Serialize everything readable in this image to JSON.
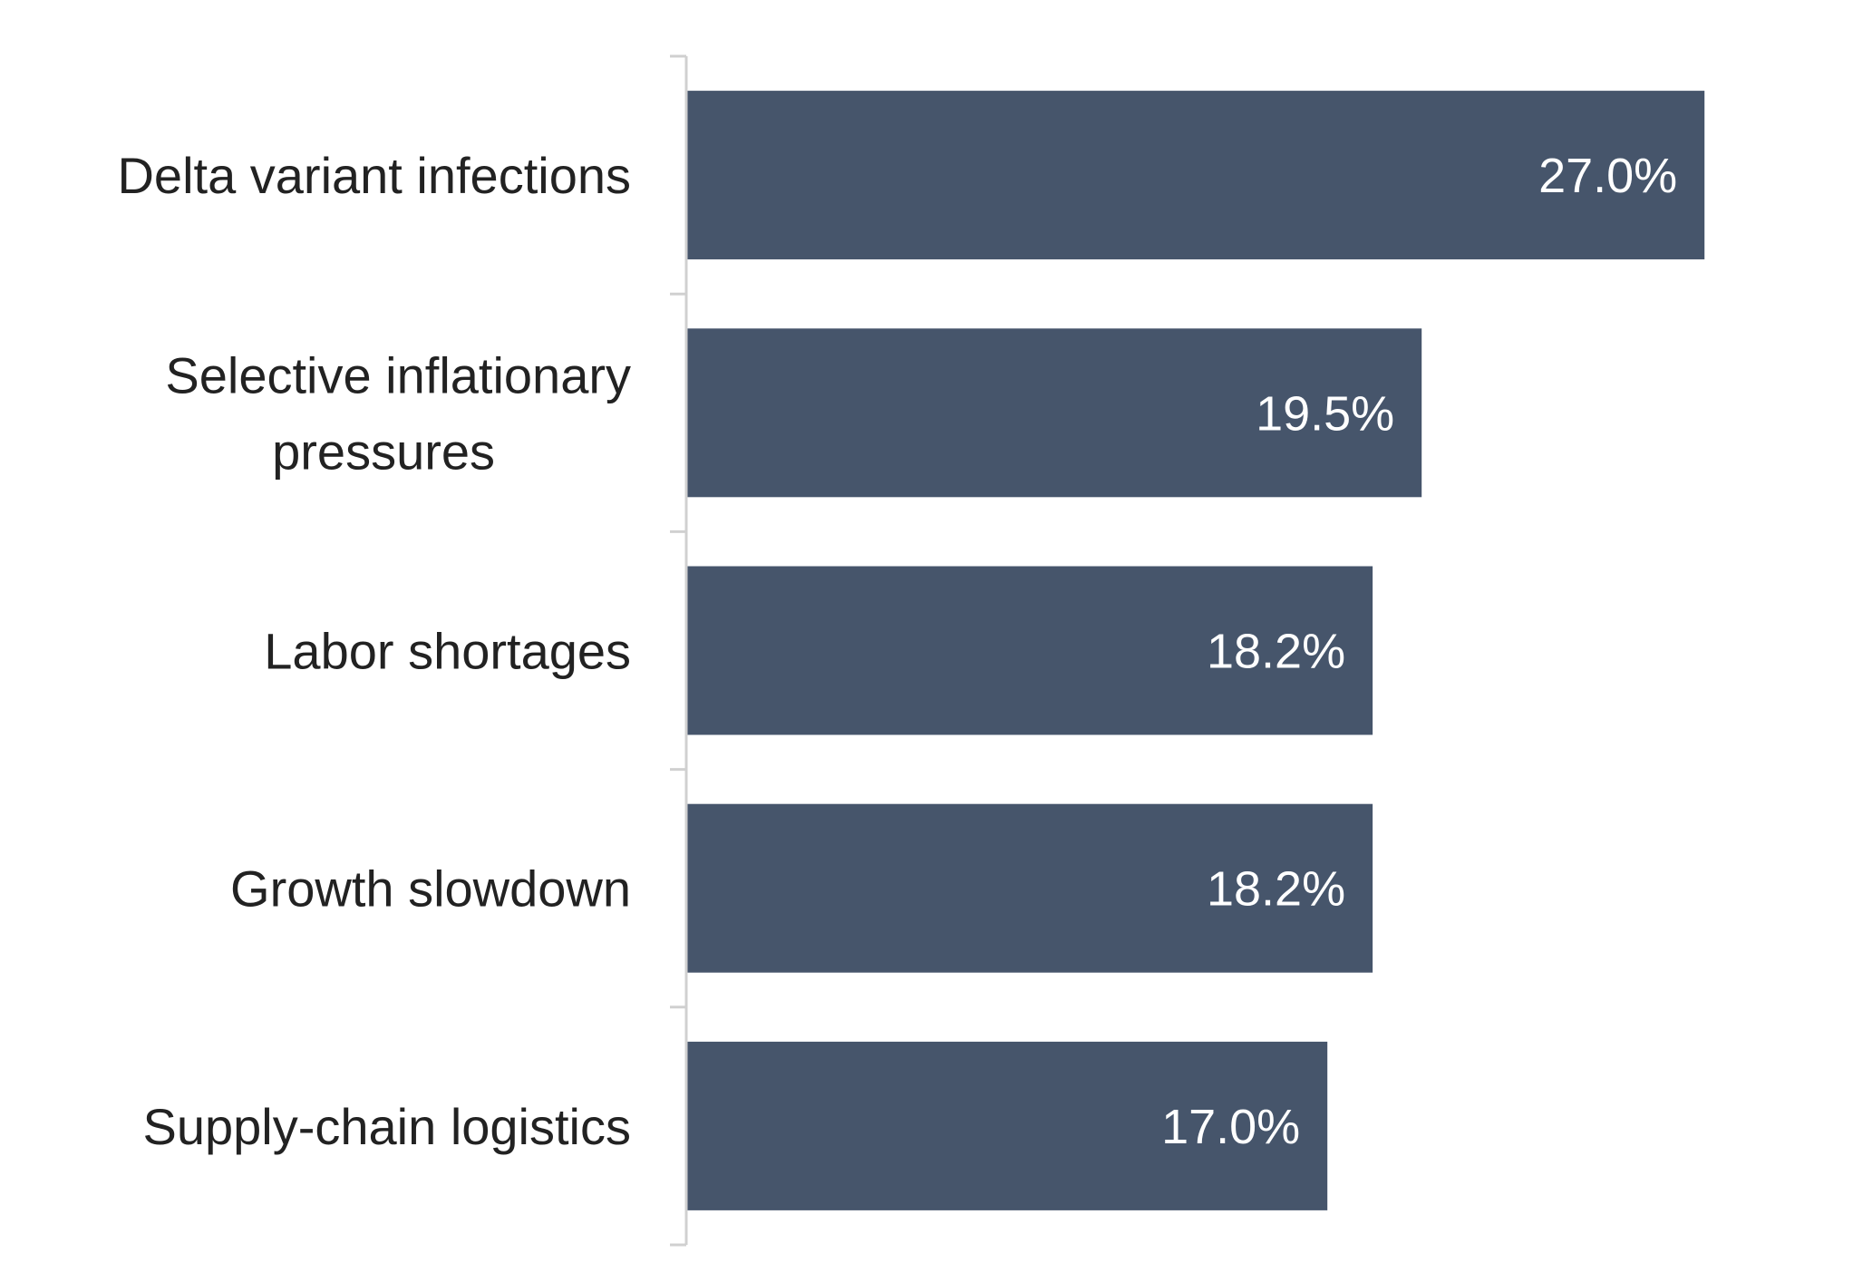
{
  "chart_data": {
    "type": "bar",
    "orientation": "horizontal",
    "categories": [
      [
        "Delta variant infections"
      ],
      [
        "Selective inflationary",
        "pressures"
      ],
      [
        "Labor shortages"
      ],
      [
        "Growth slowdown"
      ],
      [
        "Supply-chain logistics"
      ]
    ],
    "values": [
      27.0,
      19.5,
      18.2,
      18.2,
      17.0
    ],
    "value_labels": [
      "27.0%",
      "19.5%",
      "18.2%",
      "18.2%",
      "17.0%"
    ],
    "title": "",
    "xlabel": "",
    "ylabel": "",
    "xlim": [
      0,
      30
    ],
    "grid": false,
    "legend": "none",
    "colors": {
      "bar": "#46556b",
      "axis": "#d0d0d0",
      "value_text": "#ffffff",
      "label_text": "#222222"
    }
  }
}
